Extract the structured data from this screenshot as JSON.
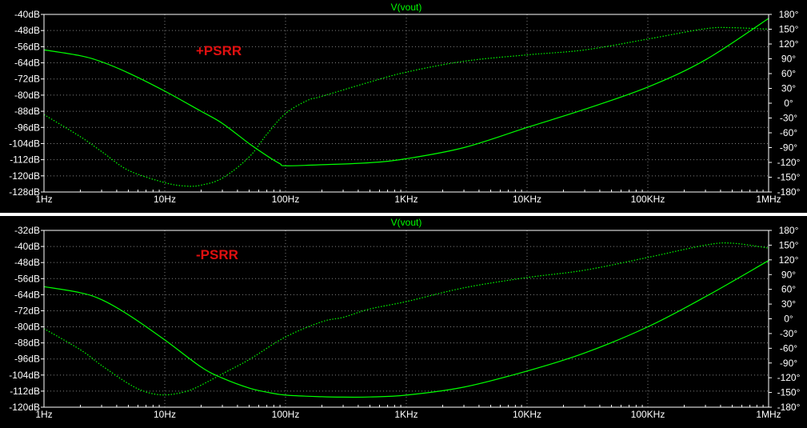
{
  "colors": {
    "background": "#000000",
    "frame": "#ffffff",
    "grid": "#808080",
    "trace": "#00ff00",
    "label": "#e01010",
    "separator": "#ffffff"
  },
  "chart_data": [
    {
      "type": "line",
      "title": "V(vout)",
      "annotation": "+PSRR",
      "xscale": "log",
      "xlim": [
        1,
        1000000
      ],
      "x_ticks": [
        1,
        10,
        100,
        1000,
        10000,
        100000,
        1000000
      ],
      "x_tick_labels": [
        "1Hz",
        "10Hz",
        "100Hz",
        "1KHz",
        "10KHz",
        "100KHz",
        "1MHz"
      ],
      "ylim": [
        -128,
        -40
      ],
      "y_ticks": [
        -40,
        -48,
        -56,
        -64,
        -72,
        -80,
        -88,
        -96,
        -104,
        -112,
        -120,
        -128
      ],
      "y_tick_labels": [
        "-40dB",
        "-48dB",
        "-56dB",
        "-64dB",
        "-72dB",
        "-80dB",
        "-88dB",
        "-96dB",
        "-104dB",
        "-112dB",
        "-120dB",
        "-128dB"
      ],
      "y2lim": [
        -180,
        180
      ],
      "y2_ticks": [
        180,
        150,
        120,
        90,
        60,
        30,
        0,
        -30,
        -60,
        -90,
        -120,
        -150,
        -180
      ],
      "y2_tick_labels": [
        "180°",
        "150°",
        "120°",
        "90°",
        "60°",
        "30°",
        "0°",
        "-30°",
        "-60°",
        "-90°",
        "-120°",
        "-150°",
        "-180°"
      ],
      "grid": true,
      "series": [
        {
          "role": "magnitude",
          "style": "solid",
          "axis": "left",
          "x": [
            1,
            2,
            3,
            5,
            10,
            20,
            30,
            50,
            70,
            90,
            100,
            200,
            500,
            1000,
            3000,
            10000,
            30000,
            100000,
            300000,
            1000000
          ],
          "y": [
            -57.6,
            -60.5,
            -63.5,
            -69,
            -78,
            -88,
            -94,
            -104,
            -110,
            -114,
            -115,
            -114.5,
            -113.5,
            -111.5,
            -106,
            -96,
            -87,
            -76,
            -62.5,
            -42
          ]
        },
        {
          "role": "phase",
          "style": "dotted",
          "axis": "right",
          "x": [
            1,
            2,
            3,
            5,
            10,
            15,
            20,
            30,
            50,
            70,
            100,
            150,
            200,
            500,
            1000,
            3000,
            10000,
            30000,
            100000,
            300000,
            500000,
            1000000
          ],
          "y": [
            -23,
            -68,
            -98,
            -136,
            -161,
            -168,
            -166,
            -152,
            -109,
            -63,
            -21,
            5,
            14,
            43,
            63,
            85,
            98,
            108,
            130,
            151,
            153,
            150
          ]
        }
      ]
    },
    {
      "type": "line",
      "title": "V(vout)",
      "annotation": "-PSRR",
      "xscale": "log",
      "xlim": [
        1,
        1000000
      ],
      "x_ticks": [
        1,
        10,
        100,
        1000,
        10000,
        100000,
        1000000
      ],
      "x_tick_labels": [
        "1Hz",
        "10Hz",
        "100Hz",
        "1KHz",
        "10KHz",
        "100KHz",
        "1MHz"
      ],
      "ylim": [
        -120,
        -32
      ],
      "y_ticks": [
        -32,
        -40,
        -48,
        -56,
        -64,
        -72,
        -80,
        -88,
        -96,
        -104,
        -112,
        -120
      ],
      "y_tick_labels": [
        "-32dB",
        "-40dB",
        "-48dB",
        "-56dB",
        "-64dB",
        "-72dB",
        "-80dB",
        "-88dB",
        "-96dB",
        "-104dB",
        "-112dB",
        "-120dB"
      ],
      "y2lim": [
        -180,
        180
      ],
      "y2_ticks": [
        180,
        150,
        120,
        90,
        60,
        30,
        0,
        -30,
        -60,
        -90,
        -120,
        -150,
        -180
      ],
      "y2_tick_labels": [
        "180°",
        "150°",
        "120°",
        "90°",
        "60°",
        "30°",
        "0°",
        "-30°",
        "-60°",
        "-90°",
        "-120°",
        "-150°",
        "-180°"
      ],
      "grid": true,
      "series": [
        {
          "role": "magnitude",
          "style": "solid",
          "axis": "left",
          "x": [
            1,
            2,
            3,
            5,
            10,
            20,
            30,
            50,
            70,
            100,
            200,
            300,
            500,
            1000,
            3000,
            10000,
            30000,
            100000,
            300000,
            1000000
          ],
          "y": [
            -60,
            -63,
            -66.5,
            -74,
            -86.5,
            -100,
            -105.5,
            -110.5,
            -112.5,
            -114,
            -114.8,
            -115,
            -114.9,
            -114,
            -110,
            -102,
            -93,
            -80,
            -65,
            -47
          ]
        },
        {
          "role": "phase",
          "style": "dotted",
          "axis": "right",
          "x": [
            1,
            2,
            3,
            5,
            7,
            10,
            15,
            20,
            30,
            50,
            100,
            200,
            300,
            500,
            1000,
            3000,
            10000,
            30000,
            100000,
            300000,
            500000,
            1000000
          ],
          "y": [
            -20,
            -63,
            -95,
            -132,
            -149,
            -155,
            -148,
            -135,
            -112,
            -83,
            -37,
            -6,
            3,
            20,
            35,
            63,
            84,
            99,
            125,
            150,
            154,
            144
          ]
        }
      ]
    }
  ]
}
